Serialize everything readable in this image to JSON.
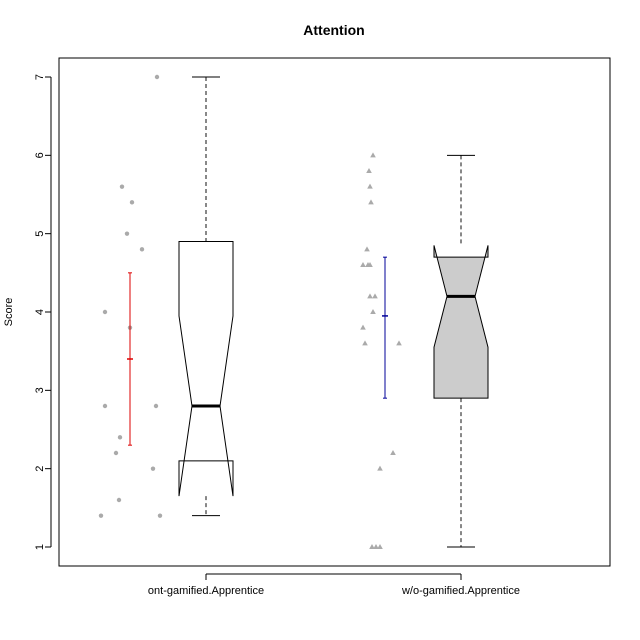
{
  "chart_data": {
    "type": "boxplot",
    "title": "Attention",
    "xlabel": "",
    "ylabel": "Score",
    "ylim": [
      0.75,
      7.25
    ],
    "yticks": [
      1,
      2,
      3,
      4,
      5,
      6,
      7
    ],
    "categories": [
      "ont-gamified.Apprentice",
      "w/o-gamified.Apprentice"
    ],
    "boxes": [
      {
        "name": "ont-gamified.Apprentice",
        "fill": "#ffffff",
        "whisker_low": 1.4,
        "q1": 2.1,
        "median": 2.8,
        "q3": 4.9,
        "whisker_high": 7.0,
        "notch_low": 1.65,
        "notch_high": 3.95
      },
      {
        "name": "w/o-gamified.Apprentice",
        "fill": "#cccccc",
        "whisker_low": 1.0,
        "q1": 2.9,
        "median": 4.2,
        "q3": 4.7,
        "whisker_high": 6.0,
        "notch_low": 3.55,
        "notch_high": 4.85
      }
    ],
    "mean_ci": [
      {
        "category": "ont-gamified.Apprentice",
        "mean": 3.4,
        "low": 2.3,
        "high": 4.5,
        "color": "#dd0000"
      },
      {
        "category": "w/o-gamified.Apprentice",
        "mean": 3.95,
        "low": 2.9,
        "high": 4.7,
        "color": "#000099"
      }
    ],
    "points": [
      {
        "category": "ont-gamified.Apprentice",
        "marker": "circle",
        "color": "#aaaaaa",
        "values": [
          7.0,
          5.6,
          5.4,
          5.0,
          4.8,
          4.0,
          3.8,
          2.8,
          2.8,
          2.4,
          2.2,
          2.0,
          1.6,
          1.4,
          1.4
        ],
        "jitter": [
          0.27,
          -0.08,
          0.02,
          -0.03,
          0.12,
          -0.25,
          0.0,
          -0.25,
          0.26,
          -0.1,
          -0.14,
          0.23,
          -0.11,
          -0.29,
          0.3
        ]
      },
      {
        "category": "w/o-gamified.Apprentice",
        "marker": "triangle",
        "color": "#aaaaaa",
        "values": [
          6.0,
          5.8,
          5.6,
          5.4,
          4.8,
          4.6,
          4.6,
          4.6,
          4.2,
          4.2,
          4.0,
          3.8,
          3.6,
          3.6,
          2.2,
          2.0,
          1.0,
          1.0,
          1.0
        ],
        "jitter": [
          -0.12,
          -0.16,
          -0.15,
          -0.14,
          -0.18,
          -0.22,
          -0.15,
          -0.17,
          -0.15,
          -0.1,
          -0.12,
          -0.22,
          -0.2,
          0.14,
          0.08,
          -0.05,
          -0.13,
          -0.09,
          -0.05
        ]
      }
    ]
  }
}
